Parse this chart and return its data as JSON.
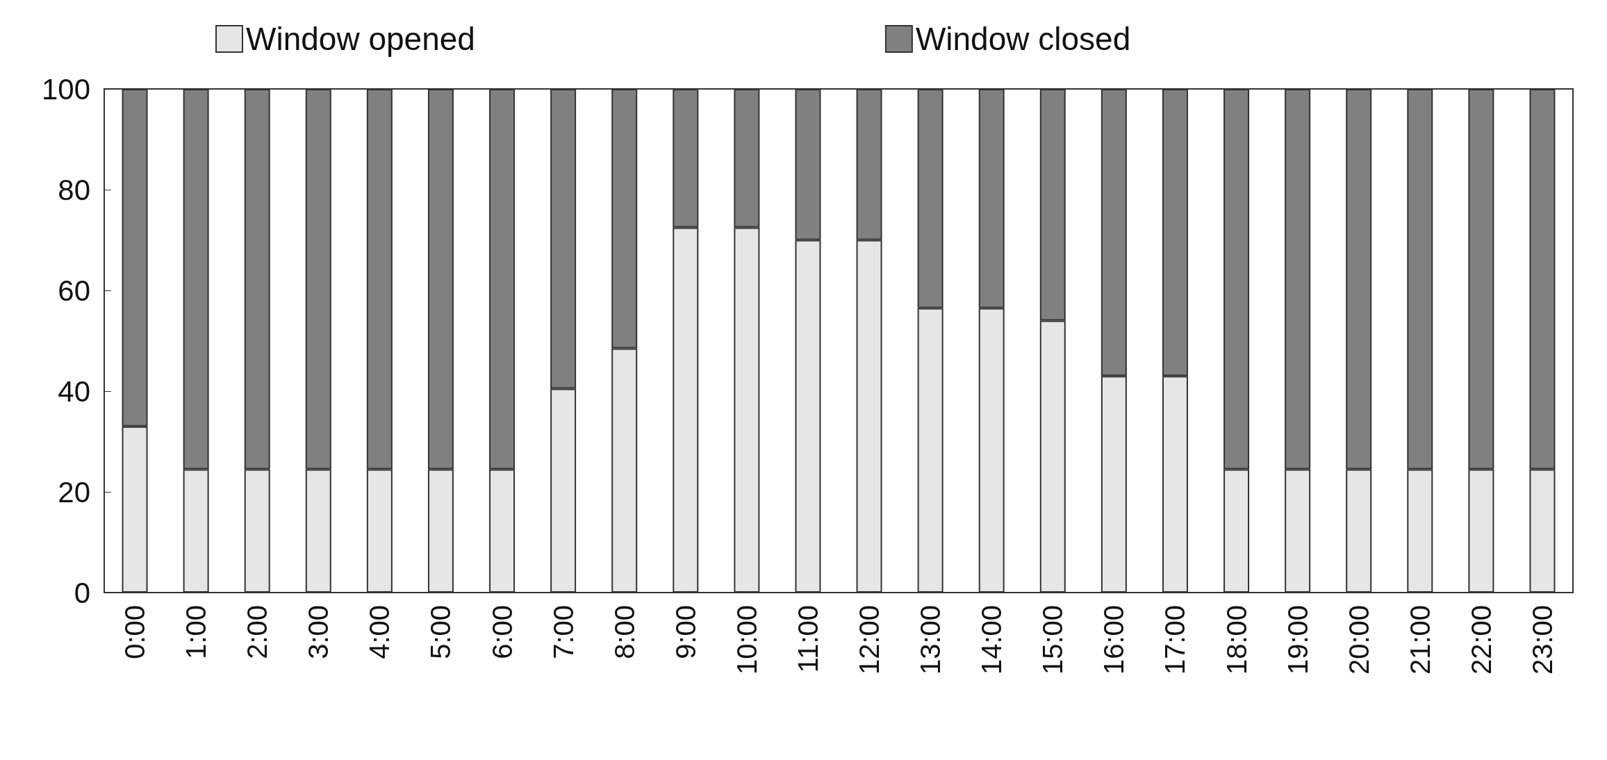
{
  "chart_data": {
    "type": "bar",
    "stacked": true,
    "categories": [
      "0:00",
      "1:00",
      "2:00",
      "3:00",
      "4:00",
      "5:00",
      "6:00",
      "7:00",
      "8:00",
      "9:00",
      "10:00",
      "11:00",
      "12:00",
      "13:00",
      "14:00",
      "15:00",
      "16:00",
      "17:00",
      "18:00",
      "19:00",
      "20:00",
      "21:00",
      "22:00",
      "23:00"
    ],
    "series": [
      {
        "name": "Window opened",
        "color": "#e6e6e6",
        "values": [
          33,
          24.5,
          24.5,
          24.5,
          24.5,
          24.5,
          24.5,
          40.5,
          48.5,
          72.5,
          72.5,
          70,
          70,
          56.5,
          56.5,
          54,
          43,
          43,
          24.5,
          24.5,
          24.5,
          24.5,
          24.5,
          24.5
        ]
      },
      {
        "name": "Window closed",
        "color": "#808080",
        "values": [
          67,
          75.5,
          75.5,
          75.5,
          75.5,
          75.5,
          75.5,
          59.5,
          51.5,
          27.5,
          27.5,
          30,
          30,
          43.5,
          43.5,
          46,
          57,
          57,
          75.5,
          75.5,
          75.5,
          75.5,
          75.5,
          75.5
        ]
      }
    ],
    "ylim": [
      0,
      100
    ],
    "yticks": [
      0,
      20,
      40,
      60,
      80,
      100
    ],
    "grid": false,
    "legend": "top"
  }
}
